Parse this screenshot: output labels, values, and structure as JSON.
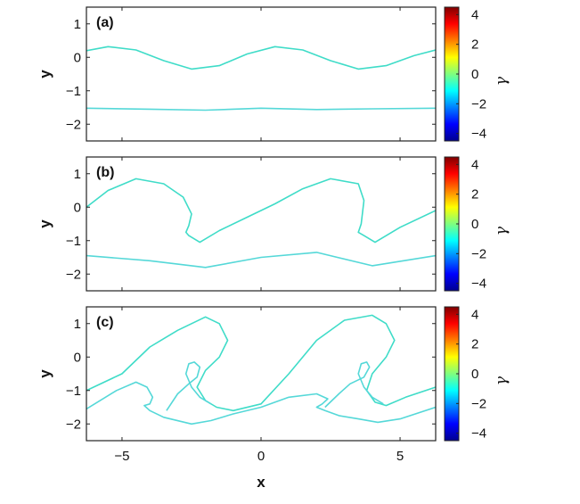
{
  "chart_data": [
    {
      "type": "line",
      "panel_label": "(a)",
      "xlabel": "",
      "ylabel": "y",
      "xlim": [
        -6.28,
        6.28
      ],
      "ylim": [
        -2.5,
        1.5
      ],
      "yticks": [
        1,
        0,
        -1,
        -2
      ],
      "ytick_labels": [
        "1",
        "0",
        "−1",
        "−2"
      ],
      "colorbar": {
        "label": "γ",
        "range": [
          -4.5,
          4.5
        ],
        "ticks": [
          4,
          2,
          0,
          -2,
          -4
        ],
        "tick_labels": [
          "4",
          "2",
          "0",
          "−2",
          "−4"
        ],
        "colormap": "jet"
      },
      "series": [
        {
          "x": [
            -6.28,
            -5.5,
            -4.5,
            -3.5,
            -2.5,
            -1.5,
            -0.5,
            0.5,
            1.5,
            2.5,
            3.5,
            4.5,
            5.5,
            6.28
          ],
          "y": [
            0.2,
            0.32,
            0.22,
            -0.1,
            -0.35,
            -0.25,
            0.1,
            0.32,
            0.22,
            -0.1,
            -0.35,
            -0.25,
            0.05,
            0.22
          ]
        },
        {
          "x": [
            -6.28,
            -4,
            -2,
            0,
            2,
            4,
            6.28
          ],
          "y": [
            -1.52,
            -1.55,
            -1.58,
            -1.52,
            -1.56,
            -1.54,
            -1.52
          ]
        }
      ]
    },
    {
      "type": "line",
      "panel_label": "(b)",
      "xlabel": "",
      "ylabel": "y",
      "xlim": [
        -6.28,
        6.28
      ],
      "ylim": [
        -2.5,
        1.5
      ],
      "yticks": [
        1,
        0,
        -1,
        -2
      ],
      "ytick_labels": [
        "1",
        "0",
        "−1",
        "−2"
      ],
      "colorbar": {
        "label": "γ",
        "range": [
          -4.5,
          4.5
        ],
        "ticks": [
          4,
          2,
          0,
          -2,
          -4
        ],
        "tick_labels": [
          "4",
          "2",
          "0",
          "−2",
          "−4"
        ],
        "colormap": "jet"
      },
      "series": [
        {
          "x": [
            -6.28,
            -5.5,
            -4.5,
            -3.5,
            -2.8,
            -2.5,
            -2.6,
            -2.7,
            -2.6,
            -2.2,
            -1.5,
            -0.5,
            0.5,
            1.5,
            2.5,
            3.5,
            3.7,
            3.6,
            3.5,
            3.7,
            4.1,
            5.0,
            6.28
          ],
          "y": [
            0.0,
            0.5,
            0.85,
            0.7,
            0.3,
            -0.2,
            -0.55,
            -0.75,
            -0.85,
            -1.05,
            -0.7,
            -0.3,
            0.1,
            0.55,
            0.85,
            0.7,
            0.2,
            -0.5,
            -0.75,
            -0.85,
            -1.05,
            -0.6,
            -0.1
          ]
        },
        {
          "x": [
            -6.28,
            -4,
            -2,
            0,
            2,
            4,
            6.28
          ],
          "y": [
            -1.45,
            -1.6,
            -1.8,
            -1.5,
            -1.35,
            -1.75,
            -1.45
          ]
        }
      ]
    },
    {
      "type": "line",
      "panel_label": "(c)",
      "xlabel": "x",
      "ylabel": "y",
      "xlim": [
        -6.28,
        6.28
      ],
      "ylim": [
        -2.5,
        1.5
      ],
      "xticks": [
        -5,
        0,
        5
      ],
      "xtick_labels": [
        "−5",
        "0",
        "5"
      ],
      "yticks": [
        1,
        0,
        -1,
        -2
      ],
      "ytick_labels": [
        "1",
        "0",
        "−1",
        "−2"
      ],
      "colorbar": {
        "label": "γ",
        "range": [
          -4.5,
          4.5
        ],
        "ticks": [
          4,
          2,
          0,
          -2,
          -4
        ],
        "tick_labels": [
          "4",
          "2",
          "0",
          "−2",
          "−4"
        ],
        "colormap": "jet"
      },
      "series": [
        {
          "x": [
            -6.28,
            -5.0,
            -4.0,
            -3.0,
            -2.0,
            -1.5,
            -1.2,
            -1.5,
            -2.0,
            -2.3,
            -2.0,
            -1.6,
            -1.0,
            0.0,
            1.0,
            2.0,
            3.0,
            4.0,
            4.5,
            4.8,
            4.5,
            4.0,
            3.8,
            4.1,
            4.5,
            5.2,
            6.28
          ],
          "y": [
            -1.0,
            -0.5,
            0.3,
            0.8,
            1.2,
            1.0,
            0.5,
            0.0,
            -0.4,
            -0.9,
            -1.3,
            -1.5,
            -1.6,
            -1.4,
            -0.5,
            0.5,
            1.1,
            1.25,
            1.0,
            0.5,
            0.0,
            -0.5,
            -1.0,
            -1.35,
            -1.45,
            -1.2,
            -0.9
          ]
        },
        {
          "x": [
            -6.28,
            -5.2,
            -4.5,
            -4.1,
            -3.9,
            -4.0,
            -4.2,
            -4.0,
            -3.5,
            -2.5,
            -1.8,
            -1.0,
            0.0,
            1.0,
            2.0,
            2.4,
            2.2,
            2.0,
            2.3,
            2.8,
            3.5,
            4.2,
            5.0,
            6.28
          ],
          "y": [
            -1.55,
            -1.0,
            -0.75,
            -0.9,
            -1.2,
            -1.4,
            -1.45,
            -1.6,
            -1.8,
            -2.0,
            -1.9,
            -1.7,
            -1.5,
            -1.2,
            -1.1,
            -1.25,
            -1.4,
            -1.5,
            -1.6,
            -1.75,
            -1.85,
            -1.95,
            -1.85,
            -1.5
          ]
        },
        {
          "x": [
            -3.4,
            -3.0,
            -2.6,
            -2.3,
            -2.2,
            -2.4,
            -2.6,
            -2.7,
            -2.5,
            -2.2,
            -1.8
          ],
          "y": [
            -1.6,
            -1.1,
            -0.8,
            -0.6,
            -0.3,
            -0.15,
            -0.2,
            -0.5,
            -0.9,
            -1.2,
            -1.4
          ]
        },
        {
          "x": [
            2.3,
            2.8,
            3.2,
            3.7,
            3.9,
            3.8,
            3.6,
            3.5,
            3.7,
            4.0,
            4.4
          ],
          "y": [
            -1.5,
            -1.1,
            -0.8,
            -0.6,
            -0.3,
            -0.15,
            -0.2,
            -0.5,
            -0.9,
            -1.2,
            -1.4
          ]
        }
      ]
    }
  ]
}
